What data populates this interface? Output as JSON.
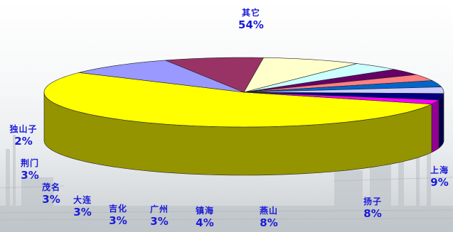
{
  "chart_data": {
    "type": "pie",
    "title": "",
    "slices": [
      {
        "label": "其它",
        "value": 54,
        "display": "54%",
        "color": "#ffff00"
      },
      {
        "label": "上海",
        "value": 9,
        "display": "9%",
        "color": "#9999ff"
      },
      {
        "label": "扬子",
        "value": 8,
        "display": "8%",
        "color": "#993366"
      },
      {
        "label": "燕山",
        "value": 8,
        "display": "8%",
        "color": "#ffffcc"
      },
      {
        "label": "镇海",
        "value": 4,
        "display": "4%",
        "color": "#ccffff"
      },
      {
        "label": "广州",
        "value": 3,
        "display": "3%",
        "color": "#660066"
      },
      {
        "label": "吉化",
        "value": 3,
        "display": "3%",
        "color": "#ff8080"
      },
      {
        "label": "大连",
        "value": 3,
        "display": "3%",
        "color": "#0066cc"
      },
      {
        "label": "茂名",
        "value": 3,
        "display": "3%",
        "color": "#ccccff"
      },
      {
        "label": "荆门",
        "value": 3,
        "display": "3%",
        "color": "#000080"
      },
      {
        "label": "独山子",
        "value": 2,
        "display": "2%",
        "color": "#ff00ff"
      }
    ]
  }
}
